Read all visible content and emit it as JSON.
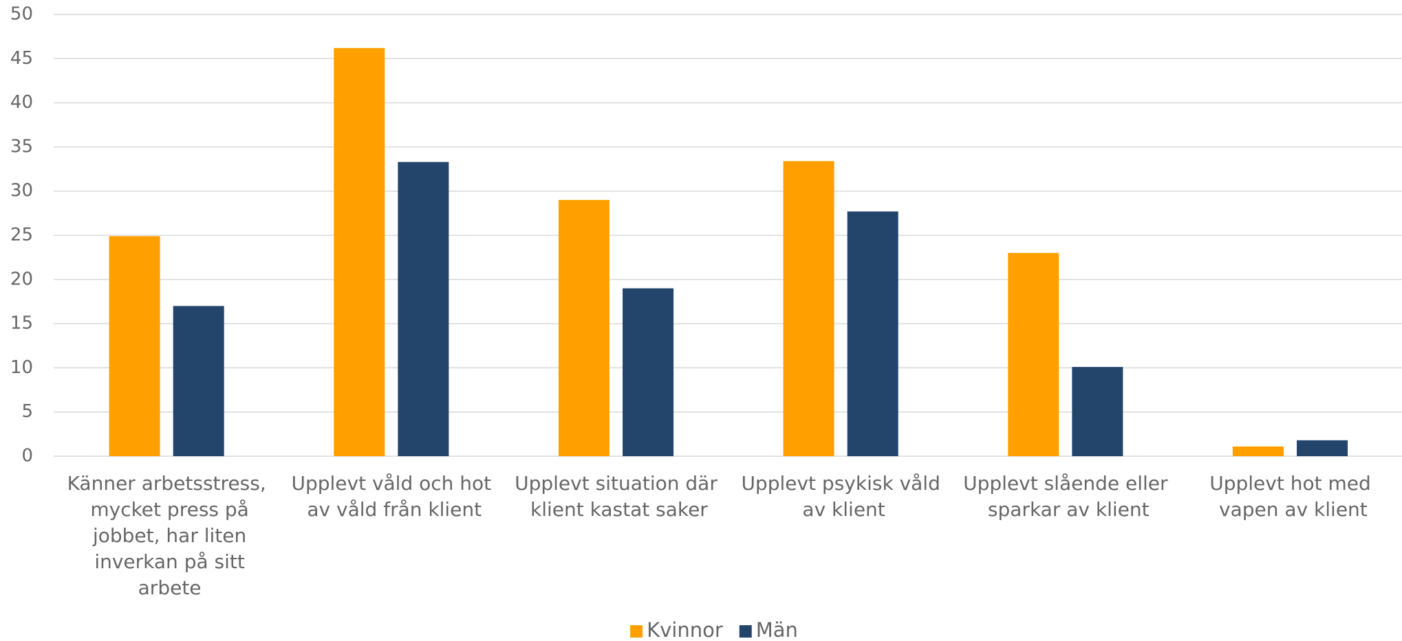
{
  "chart_data": {
    "type": "bar",
    "categories": [
      "Känner arbetsstress, mycket press på jobbet, har liten inverkan på sitt arbete",
      "Upplevt våld och hot av våld från klient",
      "Upplevt situation där klient kastat saker",
      "Upplevt psykisk våld av klient",
      "Upplevt slående eller sparkar av klient",
      "Upplevt hot med vapen av klient"
    ],
    "series": [
      {
        "name": "Kvinnor",
        "color": "#ffa000",
        "values": [
          24.9,
          46.2,
          29,
          33.4,
          23,
          1.1
        ]
      },
      {
        "name": "Män",
        "color": "#23446b",
        "values": [
          17,
          33.3,
          19,
          27.7,
          10.1,
          1.8
        ]
      }
    ],
    "ylim": [
      0,
      50
    ],
    "yticks": [
      0,
      5,
      10,
      15,
      20,
      25,
      30,
      35,
      40,
      45,
      50
    ],
    "grid": true,
    "legend": "bottom"
  }
}
